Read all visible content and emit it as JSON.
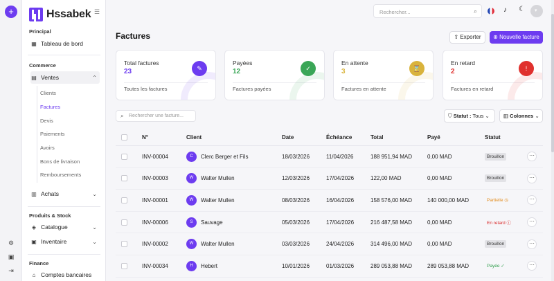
{
  "brand": {
    "name": "Hssabek"
  },
  "sidebar": {
    "sections": {
      "principal": "Principal",
      "commerce": "Commerce",
      "produits": "Produits & Stock",
      "finance": "Finance"
    },
    "tableau": "Tableau de bord",
    "ventes": "Ventes",
    "sub": [
      "Clients",
      "Factures",
      "Devis",
      "Paiements",
      "Avoirs",
      "Bons de livraison",
      "Remboursements"
    ],
    "achats": "Achats",
    "catalogue": "Catalogue",
    "inventaire": "Inventaire",
    "comptes": "Comptes bancaires"
  },
  "header": {
    "search_placeholder": "Rechercher..."
  },
  "page": {
    "title": "Factures",
    "export": "Exporter",
    "new": "Nouvelle facture"
  },
  "cards": [
    {
      "label": "Total factures",
      "value": "23",
      "foot": "Toutes les factures",
      "color": "#6d3cf0",
      "icon": "document-icon",
      "glyph": "✎"
    },
    {
      "label": "Payées",
      "value": "12",
      "foot": "Factures payées",
      "color": "#3aa657",
      "icon": "check-circle-icon",
      "glyph": "✓"
    },
    {
      "label": "En attente",
      "value": "3",
      "foot": "Factures en attente",
      "color": "#d9b33c",
      "icon": "hourglass-icon",
      "glyph": "⌛"
    },
    {
      "label": "En retard",
      "value": "2",
      "foot": "Factures en retard",
      "color": "#e0312e",
      "icon": "alert-icon",
      "glyph": "!"
    }
  ],
  "table_tools": {
    "search_placeholder": "Rechercher une facture...",
    "statut_label": "Statut :",
    "statut_value": "Tous",
    "columns": "Colonnes"
  },
  "columns": [
    "N°",
    "Client",
    "Date",
    "Échéance",
    "Total",
    "Payé",
    "Statut"
  ],
  "rows": [
    {
      "num": "INV-00004",
      "initial": "C",
      "client": "Clerc Berger et Fils",
      "date": "18/03/2026",
      "due": "11/04/2026",
      "total": "188 951,94 MAD",
      "paid": "0,00 MAD",
      "status": "Brouillon",
      "status_class": "b-Brouillon"
    },
    {
      "num": "INV-00003",
      "initial": "W",
      "client": "Walter Mullen",
      "date": "12/03/2026",
      "due": "17/04/2026",
      "total": "122,00 MAD",
      "paid": "0,00 MAD",
      "status": "Brouillon",
      "status_class": "b-Brouillon"
    },
    {
      "num": "INV-00001",
      "initial": "W",
      "client": "Walter Mullen",
      "date": "08/03/2026",
      "due": "16/04/2026",
      "total": "158 576,00 MAD",
      "paid": "140 000,00 MAD",
      "status": "Partielle ◷",
      "status_class": "b-Partielle"
    },
    {
      "num": "INV-00006",
      "initial": "S",
      "client": "Sauvage",
      "date": "05/03/2026",
      "due": "17/04/2026",
      "total": "216 487,58 MAD",
      "paid": "0,00 MAD",
      "status": "En retard ⓘ",
      "status_class": "b-retard"
    },
    {
      "num": "INV-00002",
      "initial": "W",
      "client": "Walter Mullen",
      "date": "03/03/2026",
      "due": "24/04/2026",
      "total": "314 496,00 MAD",
      "paid": "0,00 MAD",
      "status": "Brouillon",
      "status_class": "b-Brouillon"
    },
    {
      "num": "INV-00034",
      "initial": "H",
      "client": "Hebert",
      "date": "10/01/2026",
      "due": "01/03/2026",
      "total": "289 053,88 MAD",
      "paid": "289 053,88 MAD",
      "status": "Payée ✓",
      "status_class": "b-Payee"
    }
  ]
}
